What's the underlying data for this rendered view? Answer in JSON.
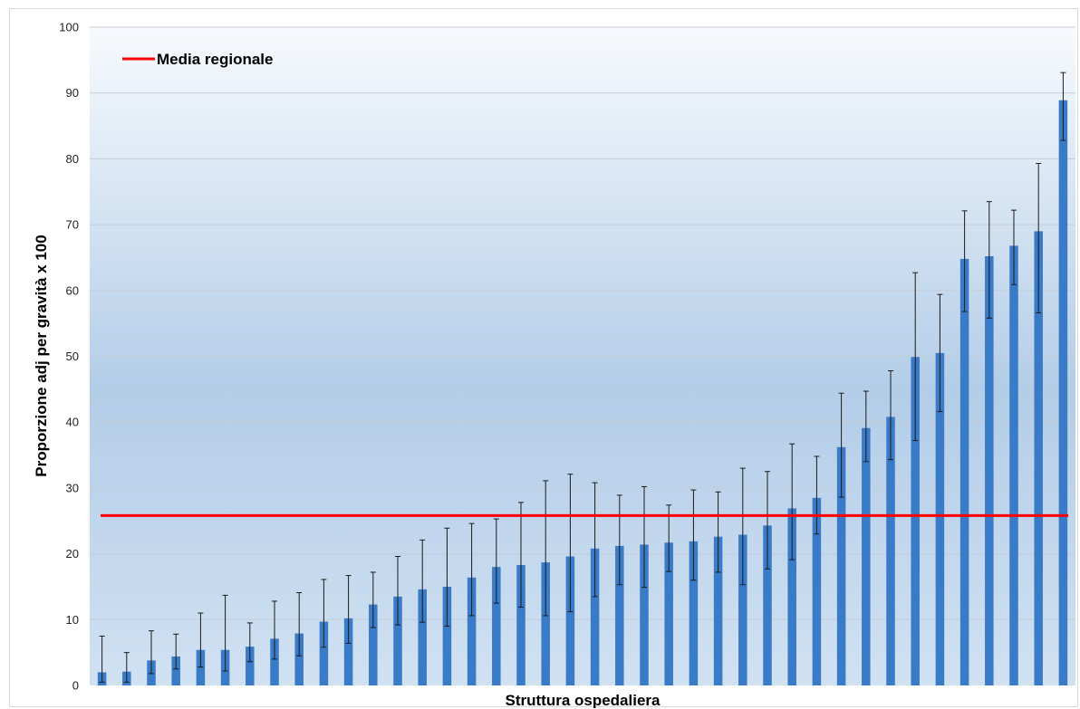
{
  "chart_data": {
    "type": "bar",
    "xlabel": "Struttura ospedaliera",
    "ylabel": "Proporzione adj per gravità x 100",
    "ylim": [
      0,
      100
    ],
    "yticks": [
      0,
      10,
      20,
      30,
      40,
      50,
      60,
      70,
      80,
      90,
      100
    ],
    "grid": true,
    "legend_position": "top-left",
    "bar_color": "#3a7bc8",
    "reference_line": {
      "name": "Media regionale",
      "value": 25.8,
      "color": "#ff0000"
    },
    "series": [
      {
        "values": [
          2.0,
          2.1,
          3.8,
          4.4,
          5.4,
          5.4,
          5.9,
          7.1,
          7.9,
          9.7,
          10.2,
          12.3,
          13.5,
          14.6,
          15.0,
          16.4,
          18.0,
          18.3,
          18.7,
          19.6,
          20.8,
          21.2,
          21.4,
          21.7,
          21.9,
          22.6,
          22.9,
          24.3,
          26.9,
          28.5,
          36.2,
          39.1,
          40.8,
          49.9,
          50.5,
          64.8,
          65.2,
          66.8,
          69.0,
          88.9
        ],
        "error_low": [
          0.5,
          0.5,
          1.8,
          2.5,
          2.8,
          2.2,
          3.6,
          4.0,
          4.5,
          5.8,
          6.4,
          8.8,
          9.2,
          9.6,
          9.0,
          10.6,
          12.5,
          11.9,
          10.6,
          11.2,
          13.5,
          15.3,
          14.9,
          17.3,
          16.0,
          17.2,
          15.3,
          17.7,
          19.1,
          23.0,
          28.6,
          34.0,
          34.3,
          37.2,
          41.6,
          56.8,
          55.8,
          60.9,
          56.6,
          82.8
        ],
        "error_high": [
          7.5,
          5.0,
          8.3,
          7.8,
          11.0,
          13.7,
          9.5,
          12.8,
          14.1,
          16.1,
          16.7,
          17.2,
          19.6,
          22.1,
          23.9,
          24.6,
          25.3,
          27.8,
          31.1,
          32.1,
          30.8,
          28.9,
          30.2,
          27.4,
          29.7,
          29.4,
          33.0,
          32.5,
          36.7,
          34.8,
          44.4,
          44.7,
          47.8,
          62.7,
          59.4,
          72.1,
          73.5,
          72.2,
          79.3,
          93.1
        ]
      }
    ]
  }
}
